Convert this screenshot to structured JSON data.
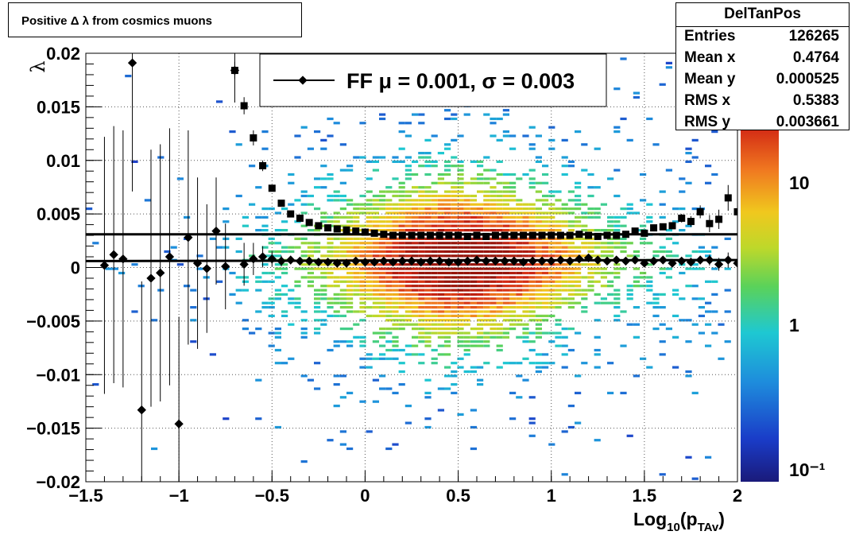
{
  "title": "Positive Δ λ from cosmics muons",
  "stats": {
    "name": "DelTanPos",
    "rows": [
      {
        "label": "Entries",
        "value": "126265"
      },
      {
        "label": "Mean x",
        "value": "0.4764"
      },
      {
        "label": "Mean y",
        "value": "0.000525"
      },
      {
        "label": "RMS x",
        "value": "0.5383"
      },
      {
        "label": "RMS y",
        "value": "0.003661"
      }
    ]
  },
  "legend": {
    "label": "FF μ =  0.001, σ =   0.003"
  },
  "colorbar": {
    "ticks": [
      "10",
      "1",
      "10⁻¹"
    ],
    "log": true,
    "palette": "rainbow",
    "zmin": 0.1,
    "zmax": 30
  },
  "chart_data": {
    "type": "heatmap",
    "xlabel": "Log10(pTAv)",
    "xlabel_parts": {
      "base": "Log",
      "sub1": "10",
      "mid": "(p",
      "sub2": "TAv",
      "end": ")"
    },
    "ylabel": "λ",
    "xlim": [
      -1.5,
      2.0
    ],
    "ylim": [
      -0.02,
      0.02
    ],
    "xticks": [
      "−1.5",
      "−1",
      "−0.5",
      "0",
      "0.5",
      "1",
      "1.5",
      "2"
    ],
    "xtick_values": [
      -1.5,
      -1.0,
      -0.5,
      0.0,
      0.5,
      1.0,
      1.5,
      2.0
    ],
    "yticks": [
      "0.02",
      "0.015",
      "0.01",
      "0.005",
      "0",
      "−0.005",
      "−0.01",
      "−0.015",
      "−0.02"
    ],
    "ytick_values": [
      0.02,
      0.015,
      0.01,
      0.005,
      0.0,
      -0.005,
      -0.01,
      -0.015,
      -0.02
    ],
    "grid": true,
    "mean_points": {
      "name": "FF",
      "marker": "diamond",
      "x": [
        -1.4,
        -1.35,
        -1.3,
        -1.25,
        -1.2,
        -1.15,
        -1.1,
        -1.05,
        -1.0,
        -0.95,
        -0.9,
        -0.85,
        -0.8,
        -0.75,
        -0.7,
        -0.65,
        -0.6,
        -0.55,
        -0.5,
        -0.45,
        -0.4,
        -0.35,
        -0.3,
        -0.25,
        -0.2,
        -0.15,
        -0.1,
        -0.05,
        0.0,
        0.05,
        0.1,
        0.15,
        0.2,
        0.25,
        0.3,
        0.35,
        0.4,
        0.45,
        0.5,
        0.55,
        0.6,
        0.65,
        0.7,
        0.75,
        0.8,
        0.85,
        0.9,
        0.95,
        1.0,
        1.05,
        1.1,
        1.15,
        1.2,
        1.25,
        1.3,
        1.35,
        1.4,
        1.45,
        1.5,
        1.55,
        1.6,
        1.65,
        1.7,
        1.75,
        1.8,
        1.85,
        1.9,
        1.95,
        2.0
      ],
      "y": [
        0.0002,
        0.0012,
        0.0008,
        0.0191,
        -0.0133,
        -0.001,
        -0.0005,
        0.001,
        -0.0146,
        0.0028,
        0.0004,
        -0.0001,
        0.0034,
        0.0001,
        0.0184,
        0.0003,
        0.0008,
        0.001,
        0.0008,
        0.0006,
        0.0007,
        0.0006,
        0.0006,
        0.0005,
        0.0005,
        0.0004,
        0.0004,
        0.0006,
        0.0005,
        0.0005,
        0.0006,
        0.0005,
        0.0006,
        0.0006,
        0.0005,
        0.0006,
        0.0006,
        0.0005,
        0.0005,
        0.0006,
        0.0007,
        0.0006,
        0.0006,
        0.0006,
        0.0006,
        0.0005,
        0.0006,
        0.0006,
        0.0006,
        0.0007,
        0.0006,
        0.0008,
        0.0009,
        0.0007,
        0.0006,
        0.0007,
        0.0006,
        0.0007,
        0.0004,
        0.0006,
        0.0007,
        0.0004,
        0.0006,
        0.0005,
        0.0007,
        0.0007,
        0.0003,
        0.0007,
        0.0004
      ],
      "err": [
        0.012,
        0.012,
        0.012,
        0.012,
        0.012,
        0.012,
        0.012,
        0.012,
        0.01,
        0.01,
        0.008,
        0.006,
        0.005,
        0.004,
        0.003,
        0.002,
        0.0015,
        0.001,
        0.0007,
        0.0005,
        0.0004,
        0.0003,
        0.0002,
        0.0002,
        0.0002,
        0.0001,
        0.0001,
        0.0001,
        0.0001,
        0.0001,
        0.0001,
        0.0001,
        0.0001,
        0.0001,
        0.0001,
        0.0001,
        0.0001,
        0.0001,
        0.0001,
        0.0001,
        0.0001,
        0.0001,
        0.0001,
        0.0001,
        0.0001,
        0.0001,
        0.0001,
        0.0001,
        0.0001,
        0.0001,
        0.0001,
        0.0001,
        0.0001,
        0.0001,
        0.0001,
        0.0001,
        0.0001,
        0.0001,
        0.0002,
        0.0002,
        0.0002,
        0.0003,
        0.0003,
        0.0004,
        0.0004,
        0.0005,
        0.0006,
        0.0007,
        0.0008
      ]
    },
    "sigma_points": {
      "marker": "square",
      "x": [
        -0.7,
        -0.65,
        -0.6,
        -0.55,
        -0.5,
        -0.45,
        -0.4,
        -0.35,
        -0.3,
        -0.25,
        -0.2,
        -0.15,
        -0.1,
        -0.05,
        0.0,
        0.05,
        0.1,
        0.15,
        0.2,
        0.25,
        0.3,
        0.35,
        0.4,
        0.45,
        0.5,
        0.55,
        0.6,
        0.65,
        0.7,
        0.75,
        0.8,
        0.85,
        0.9,
        0.95,
        1.0,
        1.05,
        1.1,
        1.15,
        1.2,
        1.25,
        1.3,
        1.35,
        1.4,
        1.45,
        1.5,
        1.55,
        1.6,
        1.65,
        1.7,
        1.75,
        1.8,
        1.85,
        1.9,
        1.95,
        2.0
      ],
      "y": [
        0.0184,
        0.0151,
        0.0121,
        0.0095,
        0.0074,
        0.006,
        0.005,
        0.0046,
        0.0042,
        0.0039,
        0.0037,
        0.0036,
        0.0035,
        0.0034,
        0.0033,
        0.0032,
        0.0031,
        0.003,
        0.003,
        0.003,
        0.003,
        0.003,
        0.003,
        0.003,
        0.003,
        0.0029,
        0.003,
        0.0029,
        0.003,
        0.003,
        0.003,
        0.003,
        0.003,
        0.003,
        0.003,
        0.003,
        0.003,
        0.0031,
        0.003,
        0.0029,
        0.003,
        0.003,
        0.0031,
        0.0034,
        0.0032,
        0.0037,
        0.0038,
        0.0039,
        0.0046,
        0.0043,
        0.0052,
        0.0041,
        0.0045,
        0.0065,
        0.0052
      ],
      "err": [
        0.0008,
        0.0008,
        0.0007,
        0.0005,
        0.0003,
        0.0002,
        0.0002,
        0.0001,
        0.0001,
        0.0001,
        0.0001,
        0.0001,
        0.0001,
        0.0001,
        0.0001,
        0.0001,
        0.0001,
        0.0001,
        0.0001,
        0.0001,
        0.0001,
        0.0001,
        0.0001,
        0.0001,
        0.0001,
        0.0001,
        0.0001,
        0.0001,
        0.0001,
        0.0001,
        0.0001,
        0.0001,
        0.0001,
        0.0001,
        0.0001,
        0.0001,
        0.0001,
        0.0001,
        0.0001,
        0.0001,
        0.0001,
        0.0001,
        0.0001,
        0.0002,
        0.0002,
        0.0002,
        0.0003,
        0.0003,
        0.0004,
        0.0005,
        0.0006,
        0.0008,
        0.0009,
        0.0012,
        0.0012
      ]
    },
    "fit_lines": [
      {
        "x": [
          -1.5,
          2.0
        ],
        "y": [
          0.0006,
          0.0007
        ]
      },
      {
        "x": [
          -1.5,
          2.0
        ],
        "y": [
          0.0031,
          0.0031
        ]
      }
    ]
  }
}
